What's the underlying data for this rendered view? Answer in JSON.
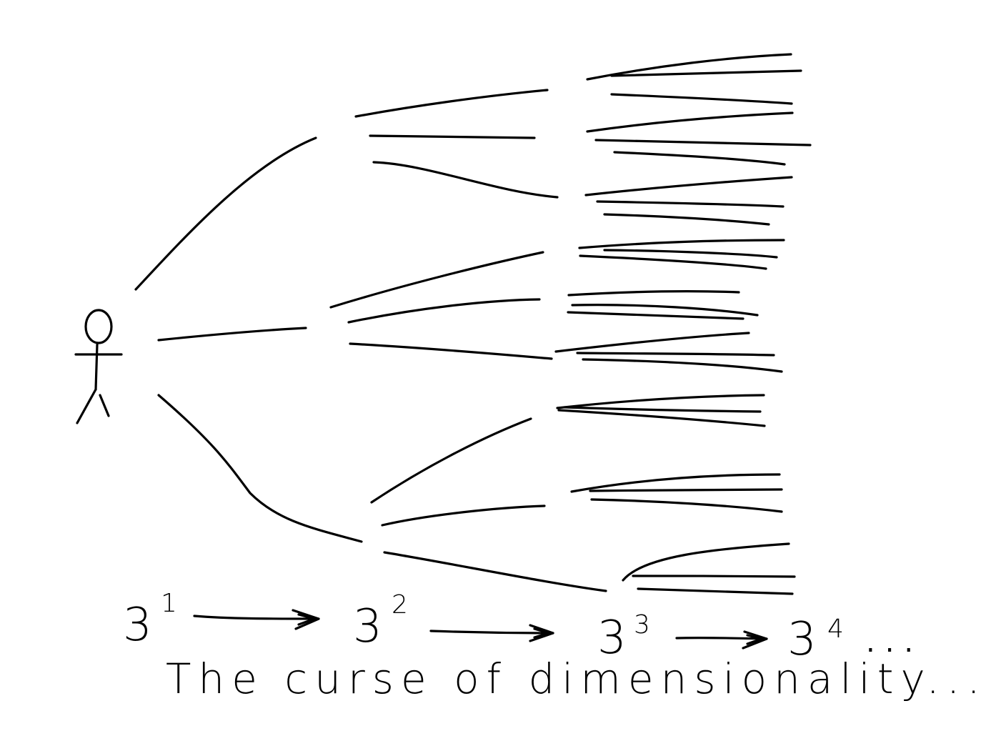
{
  "powers": [
    {
      "base": "3",
      "exponent": "1"
    },
    {
      "base": "3",
      "exponent": "2"
    },
    {
      "base": "3",
      "exponent": "3"
    },
    {
      "base": "3",
      "exponent": "4"
    }
  ],
  "ellipsis": "...",
  "caption": "The curse of dimensionality..."
}
